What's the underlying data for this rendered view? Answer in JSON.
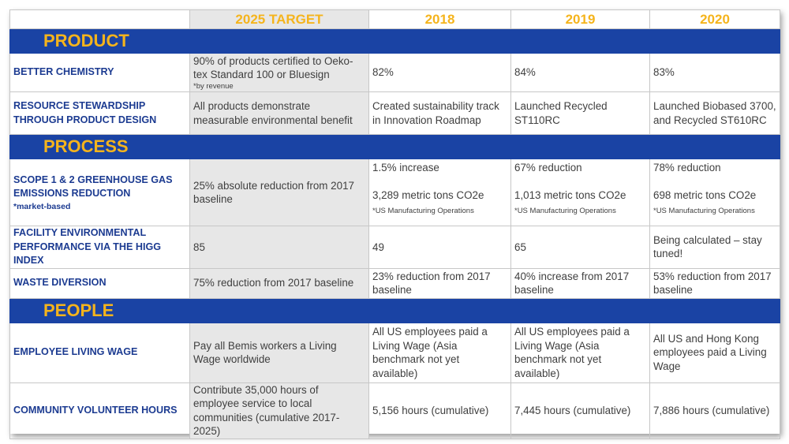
{
  "header": {
    "target": "2025 TARGET",
    "y2018": "2018",
    "y2019": "2019",
    "y2020": "2020"
  },
  "colors": {
    "section_band": "#1a43a4",
    "header_text": "#f5b41c",
    "label_text": "#1c3b91",
    "target_shade": "#e7e7e7"
  },
  "sections": {
    "product": "PRODUCT",
    "process": "PROCESS",
    "people": "PEOPLE"
  },
  "rows": {
    "better_chemistry": {
      "label": "BETTER CHEMISTRY",
      "target": "90% of products certified to Oeko-tex Standard 100 or Bluesign",
      "target_note": "*by revenue",
      "y2018": "82%",
      "y2019": "84%",
      "y2020": "83%"
    },
    "resource_stewardship": {
      "label": "RESOURCE STEWARDSHIP THROUGH PRODUCT DESIGN",
      "target": "All products demonstrate measurable environmental benefit",
      "y2018": "Created sustainability track in Innovation Roadmap",
      "y2019": "Launched Recycled ST110RC",
      "y2020": "Launched Biobased 3700, and Recycled ST610RC"
    },
    "scope_emissions": {
      "label": "SCOPE 1 & 2 GREENHOUSE GAS EMISSIONS REDUCTION",
      "label_note": "*market-based",
      "target": "25% absolute reduction from 2017 baseline",
      "y2018_change": "1.5% increase",
      "y2018_tons": "3,289 metric tons CO2e",
      "y2018_note": "*US Manufacturing Operations",
      "y2019_change": "67% reduction",
      "y2019_tons": "1,013 metric tons CO2e",
      "y2019_note": "*US Manufacturing Operations",
      "y2020_change": "78% reduction",
      "y2020_tons": "698 metric tons CO2e",
      "y2020_note": "*US Manufacturing Operations"
    },
    "facility_performance": {
      "label": "FACILITY ENVIRONMENTAL PERFORMANCE VIA THE HIGG INDEX",
      "target": "85",
      "y2018": "49",
      "y2019": "65",
      "y2020": "Being calculated – stay tuned!"
    },
    "waste_diversion": {
      "label": "WASTE DIVERSION",
      "target": "75% reduction from 2017 baseline",
      "y2018": "23% reduction from 2017 baseline",
      "y2019": "40% increase from 2017 baseline",
      "y2020": "53% reduction from 2017 baseline"
    },
    "living_wage": {
      "label": "EMPLOYEE LIVING WAGE",
      "target": "Pay all Bemis workers a Living Wage worldwide",
      "y2018": "All US employees paid a Living Wage (Asia benchmark not yet available)",
      "y2019": "All US employees paid a Living Wage (Asia benchmark not yet available)",
      "y2020": "All US and Hong Kong employees paid a Living Wage"
    },
    "volunteer_hours": {
      "label": "COMMUNITY VOLUNTEER HOURS",
      "target": "Contribute 35,000 hours of employee service to local communities (cumulative 2017-2025)",
      "y2018": "5,156 hours (cumulative)",
      "y2019": "7,445 hours (cumulative)",
      "y2020": "7,886 hours (cumulative)"
    }
  }
}
